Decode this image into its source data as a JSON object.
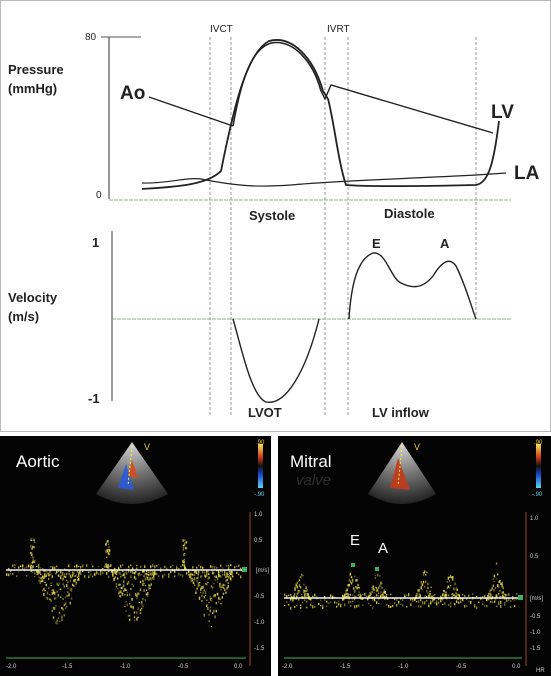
{
  "diagram": {
    "pressure_label": [
      "Pressure",
      "(mmHg)"
    ],
    "pressure_ticks": {
      "top": "80",
      "bottom": "0"
    },
    "phase_markers": [
      "IVCT",
      "IVRT"
    ],
    "curve_labels": {
      "ao": "Ao",
      "lv": "LV",
      "la": "LA"
    },
    "period_labels": {
      "systole": "Systole",
      "diastole": "Diastole"
    },
    "velocity_label": [
      "Velocity",
      "(m/s)"
    ],
    "velocity_ticks": {
      "top": "1",
      "bottom": "-1"
    },
    "wave_labels": {
      "e": "E",
      "a": "A"
    },
    "flow_labels": {
      "lvot": "LVOT",
      "inflow": "LV inflow"
    }
  },
  "echo_panels": {
    "aortic": {
      "title": "Aortic",
      "x_ticks": [
        "-2.0",
        "-1.5",
        "-1.0",
        "-0.5",
        "0.0"
      ],
      "y_ticks": [
        "1.0",
        "0.5",
        "-0.5",
        "-1.0",
        "-1.5"
      ],
      "unit": "[m/s]",
      "scale_top": ".90",
      "scale_bottom": "-.90"
    },
    "mitral": {
      "title": "Mitral",
      "ghost_text": "valve",
      "wave_labels": {
        "e": "E",
        "a": "A"
      },
      "x_ticks": [
        "-2.0",
        "-1.5",
        "-1.0",
        "-0.5",
        "0.0"
      ],
      "y_ticks": [
        "1.0",
        "0.5",
        "-0.5",
        "-1.0",
        "-1.5"
      ],
      "unit": "[m/s]",
      "scale_top": ".90",
      "scale_bottom": "-.90",
      "side_label": "HR"
    }
  },
  "colors": {
    "curve": "#222222",
    "baseline": "#8fb08f",
    "marker": "#9a9a9a",
    "doppler": "#e8d84a",
    "echo_bg": "#040404",
    "scale_green": "#3cb35a"
  }
}
